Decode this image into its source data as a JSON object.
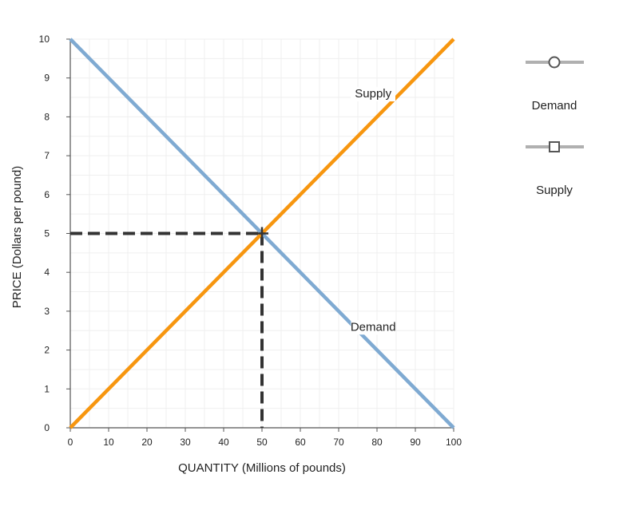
{
  "chart_data": {
    "type": "line",
    "xlabel": "QUANTITY (Millions of pounds)",
    "ylabel": "PRICE (Dollars per pound)",
    "xlim": [
      0,
      100
    ],
    "ylim": [
      0,
      10
    ],
    "x_ticks": [
      0,
      10,
      20,
      30,
      40,
      50,
      60,
      70,
      80,
      90,
      100
    ],
    "y_ticks": [
      0,
      1,
      2,
      3,
      4,
      5,
      6,
      7,
      8,
      9,
      10
    ],
    "grid": true,
    "legend_position": "right",
    "series": [
      {
        "name": "Demand",
        "color": "#7faad2",
        "marker": "circle",
        "points": [
          [
            0,
            10
          ],
          [
            100,
            0
          ]
        ]
      },
      {
        "name": "Supply",
        "color": "#f7960f",
        "marker": "square",
        "points": [
          [
            0,
            0
          ],
          [
            100,
            10
          ]
        ]
      }
    ],
    "annotations": [
      {
        "text": "Supply",
        "x": 79,
        "y": 8.5
      },
      {
        "text": "Demand",
        "x": 79,
        "y": 2.5
      }
    ],
    "equilibrium": {
      "x": 50,
      "y": 5,
      "marker": "plus",
      "guide_color": "#333333"
    }
  }
}
